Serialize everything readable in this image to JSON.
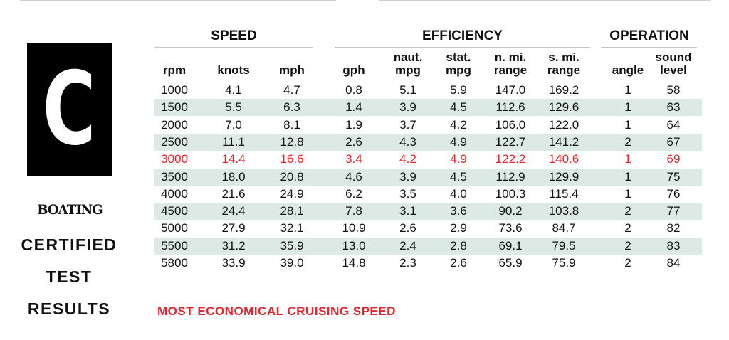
{
  "logo": {
    "letter": "C"
  },
  "brand": "BOATING",
  "certified_lines": [
    "CERTIFIED",
    "TEST",
    "RESULTS"
  ],
  "groups": [
    "SPEED",
    "EFFICIENCY",
    "OPERATION"
  ],
  "columns": [
    {
      "l1": "",
      "l2": "rpm"
    },
    {
      "l1": "",
      "l2": "knots"
    },
    {
      "l1": "",
      "l2": "mph"
    },
    {
      "l1": "",
      "l2": "gph"
    },
    {
      "l1": "naut.",
      "l2": "mpg"
    },
    {
      "l1": "stat.",
      "l2": "mpg"
    },
    {
      "l1": "n. mi.",
      "l2": "range"
    },
    {
      "l1": "s. mi.",
      "l2": "range"
    },
    {
      "l1": "",
      "l2": "angle"
    },
    {
      "l1": "sound",
      "l2": "level"
    }
  ],
  "rows": [
    [
      "1000",
      "4.1",
      "4.7",
      "0.8",
      "5.1",
      "5.9",
      "147.0",
      "169.2",
      "1",
      "58"
    ],
    [
      "1500",
      "5.5",
      "6.3",
      "1.4",
      "3.9",
      "4.5",
      "112.6",
      "129.6",
      "1",
      "63"
    ],
    [
      "2000",
      "7.0",
      "8.1",
      "1.9",
      "3.7",
      "4.2",
      "106.0",
      "122.0",
      "1",
      "64"
    ],
    [
      "2500",
      "11.1",
      "12.8",
      "2.6",
      "4.3",
      "4.9",
      "122.7",
      "141.2",
      "2",
      "67"
    ],
    [
      "3000",
      "14.4",
      "16.6",
      "3.4",
      "4.2",
      "4.9",
      "122.2",
      "140.6",
      "1",
      "69"
    ],
    [
      "3500",
      "18.0",
      "20.8",
      "4.6",
      "3.9",
      "4.5",
      "112.9",
      "129.9",
      "1",
      "75"
    ],
    [
      "4000",
      "21.6",
      "24.9",
      "6.2",
      "3.5",
      "4.0",
      "100.3",
      "115.4",
      "1",
      "76"
    ],
    [
      "4500",
      "24.4",
      "28.1",
      "7.8",
      "3.1",
      "3.6",
      "90.2",
      "103.8",
      "2",
      "77"
    ],
    [
      "5000",
      "27.9",
      "32.1",
      "10.9",
      "2.6",
      "2.9",
      "73.6",
      "84.7",
      "2",
      "82"
    ],
    [
      "5500",
      "31.2",
      "35.9",
      "13.0",
      "2.4",
      "2.8",
      "69.1",
      "79.5",
      "2",
      "83"
    ],
    [
      "5800",
      "33.9",
      "39.0",
      "14.8",
      "2.3",
      "2.6",
      "65.9",
      "75.9",
      "2",
      "84"
    ]
  ],
  "highlight_row_index": 4,
  "highlight_color": "#e1262f",
  "shade_color": "#dce9e4",
  "footnote": "MOST ECONOMICAL CRUISING SPEED"
}
